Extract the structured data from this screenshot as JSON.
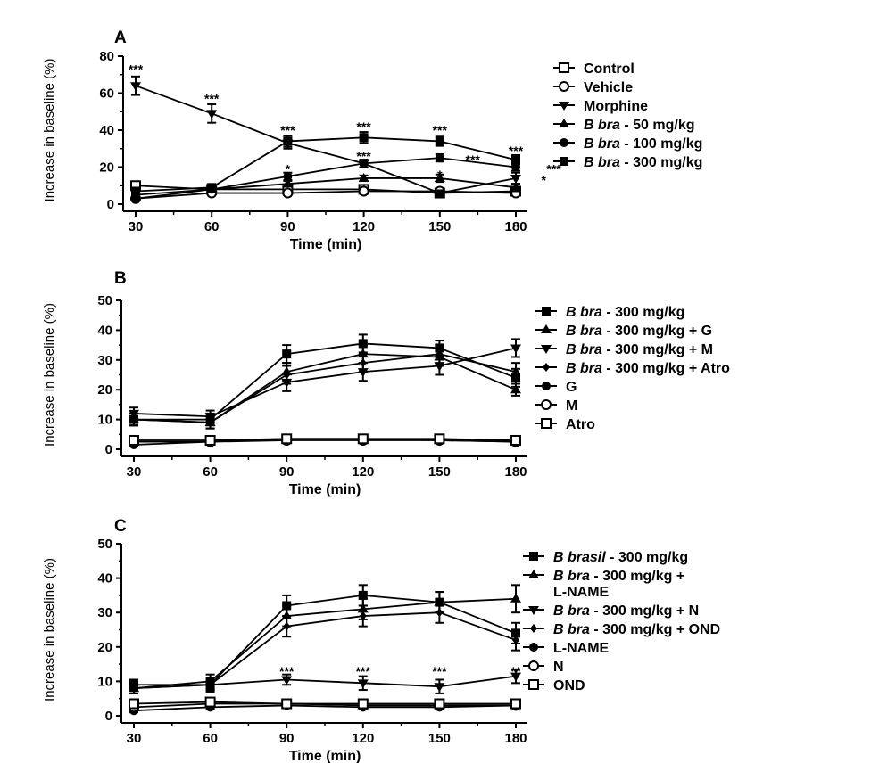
{
  "chart_data": [
    {
      "panel": "A",
      "type": "line",
      "xlabel": "Time (min)",
      "ylabel": "Increase in baseline (%)",
      "x": [
        30,
        60,
        90,
        120,
        150,
        180
      ],
      "xticks": [
        "30",
        "60",
        "90",
        "120",
        "150",
        "180"
      ],
      "ylim": [
        0,
        80
      ],
      "yticks": [
        "0",
        "20",
        "40",
        "60",
        "80"
      ],
      "legend_position": "right",
      "series": [
        {
          "name": "Control",
          "legend_parts": [
            "Control"
          ],
          "marker": "square-open",
          "values": [
            10,
            8,
            8,
            8,
            6,
            7
          ],
          "errors": [
            1.5,
            1,
            1.2,
            1.5,
            1,
            1
          ]
        },
        {
          "name": "Vehicle",
          "legend_parts": [
            "Vehicle"
          ],
          "marker": "circle-open",
          "values": [
            3,
            6,
            6,
            7,
            7,
            6
          ],
          "errors": [
            1,
            1,
            1,
            1,
            1,
            1
          ]
        },
        {
          "name": "Morphine",
          "legend_parts": [
            "Morphine"
          ],
          "marker": "triangle-down",
          "values": [
            64,
            49,
            33,
            22,
            6,
            14
          ],
          "errors": [
            5,
            5,
            3,
            2,
            1.5,
            3
          ]
        },
        {
          "name": "B bra - 50 mg/kg",
          "legend_parts": [
            "B bra",
            " - 50 mg/kg"
          ],
          "marker": "triangle-up",
          "values": [
            5,
            8,
            11,
            14,
            14,
            9
          ],
          "errors": [
            1,
            1,
            1.5,
            1.5,
            2,
            2
          ]
        },
        {
          "name": "B bra - 100 mg/kg",
          "legend_parts": [
            "B bra",
            " - 100 mg/kg"
          ],
          "marker": "circle",
          "values": [
            3,
            8,
            15,
            22,
            25,
            20
          ],
          "errors": [
            1,
            1,
            2,
            2,
            2,
            2
          ]
        },
        {
          "name": "B bra - 300 mg/kg",
          "legend_parts": [
            "B bra",
            " - 300 mg/kg"
          ],
          "marker": "square",
          "values": [
            7,
            9,
            34,
            36,
            34,
            24
          ],
          "errors": [
            1.5,
            1.5,
            3,
            3,
            2.5,
            2.5
          ]
        }
      ],
      "annotations": [
        {
          "text": "***",
          "x": 30,
          "y": 73
        },
        {
          "text": "***",
          "x": 60,
          "y": 57
        },
        {
          "text": "***",
          "x": 90,
          "y": 40
        },
        {
          "text": "*",
          "x": 90,
          "y": 19
        },
        {
          "text": "***",
          "x": 120,
          "y": 42
        },
        {
          "text": "***",
          "x": 120,
          "y": 26
        },
        {
          "text": "***",
          "x": 150,
          "y": 40
        },
        {
          "text": "*",
          "x": 150,
          "y": 16
        },
        {
          "text": "***",
          "x": 163,
          "y": 24
        },
        {
          "text": "***",
          "x": 180,
          "y": 29
        },
        {
          "text": "***",
          "x": 195,
          "y": 19
        },
        {
          "text": "*",
          "x": 191,
          "y": 13
        }
      ]
    },
    {
      "panel": "B",
      "type": "line",
      "xlabel": "Time (min)",
      "ylabel": "Increase in baseline (%)",
      "x": [
        30,
        60,
        90,
        120,
        150,
        180
      ],
      "xticks": [
        "30",
        "60",
        "90",
        "120",
        "150",
        "180"
      ],
      "ylim": [
        0,
        50
      ],
      "yticks": [
        "0",
        "10",
        "20",
        "30",
        "40",
        "50"
      ],
      "legend_position": "right",
      "series": [
        {
          "name": "B bra - 300 mg/kg",
          "legend_parts": [
            "B bra",
            " - 300 mg/kg"
          ],
          "marker": "square",
          "values": [
            10,
            10,
            32,
            35.5,
            34,
            24
          ],
          "errors": [
            2,
            2,
            3,
            3,
            2.5,
            3
          ]
        },
        {
          "name": "B bra - 300 mg/kg + G",
          "legend_parts": [
            "B bra",
            " - 300 mg/kg + G"
          ],
          "marker": "triangle-up",
          "values": [
            10,
            9,
            26,
            32,
            31,
            20
          ],
          "errors": [
            2,
            2,
            3,
            3,
            3,
            2
          ]
        },
        {
          "name": "B bra - 300 mg/kg + M",
          "legend_parts": [
            "B bra",
            " - 300 mg/kg + M"
          ],
          "marker": "triangle-down",
          "values": [
            12,
            11,
            22.5,
            26,
            28,
            34
          ],
          "errors": [
            2,
            2,
            3,
            3,
            3,
            3
          ]
        },
        {
          "name": "B bra - 300 mg/kg + Atro",
          "legend_parts": [
            "B bra",
            " - 300 mg/kg + Atro"
          ],
          "marker": "diamond",
          "values": [
            10,
            9,
            25,
            29,
            32,
            26
          ],
          "errors": [
            2,
            2,
            3,
            3,
            3,
            3
          ]
        },
        {
          "name": "G",
          "legend_parts": [
            "G"
          ],
          "marker": "circle",
          "values": [
            1.5,
            2.5,
            3.5,
            3.5,
            3,
            2.5
          ],
          "errors": [
            0.5,
            0.5,
            0.5,
            0.5,
            0.5,
            0.5
          ]
        },
        {
          "name": "M",
          "legend_parts": [
            "M"
          ],
          "marker": "circle-open",
          "values": [
            2.5,
            2.5,
            3,
            3,
            3,
            2.5
          ],
          "errors": [
            0.5,
            0.5,
            0.5,
            0.5,
            0.5,
            0.5
          ]
        },
        {
          "name": "Atro",
          "legend_parts": [
            "Atro"
          ],
          "marker": "square-open",
          "values": [
            3,
            3,
            3.5,
            3.5,
            3.5,
            3
          ],
          "errors": [
            0.5,
            0.5,
            0.5,
            0.5,
            0.5,
            0.5
          ]
        }
      ],
      "annotations": []
    },
    {
      "panel": "C",
      "type": "line",
      "xlabel": "Time (min)",
      "ylabel": "Increase in baseline (%)",
      "x": [
        30,
        60,
        90,
        120,
        150,
        180
      ],
      "xticks": [
        "30",
        "60",
        "90",
        "120",
        "150",
        "180"
      ],
      "ylim": [
        0,
        50
      ],
      "yticks": [
        "0",
        "10",
        "20",
        "30",
        "40",
        "50"
      ],
      "legend_position": "right",
      "series": [
        {
          "name": "B brasil - 300 mg/kg",
          "legend_parts": [
            "B brasil",
            " - 300 mg/kg"
          ],
          "marker": "square",
          "values": [
            9,
            9,
            32,
            35,
            33,
            24
          ],
          "errors": [
            1.5,
            2,
            3,
            3,
            3,
            3
          ]
        },
        {
          "name": "B bra - 300 mg/kg + L-NAME",
          "legend_parts": [
            "B bra",
            " - 300 mg/kg + ",
            "L-NAME"
          ],
          "marker": "triangle-up",
          "values": [
            8,
            10,
            29,
            31,
            33,
            34
          ],
          "errors": [
            1.5,
            2,
            3,
            3,
            3,
            4
          ]
        },
        {
          "name": "B bra - 300 mg/kg + N",
          "legend_parts": [
            "B bra",
            " - 300 mg/kg + N"
          ],
          "marker": "triangle-down",
          "values": [
            8,
            9,
            10.5,
            9.5,
            8.5,
            11.5
          ],
          "errors": [
            1.5,
            1.5,
            1.5,
            2,
            2,
            2
          ]
        },
        {
          "name": "B bra - 300 mg/kg + OND",
          "legend_parts": [
            "B bra",
            " - 300 mg/kg + OND"
          ],
          "marker": "diamond",
          "values": [
            8,
            9,
            26,
            29,
            30,
            22
          ],
          "errors": [
            1.5,
            1.5,
            3,
            3,
            3,
            3
          ]
        },
        {
          "name": "L-NAME",
          "legend_parts": [
            "L-NAME"
          ],
          "marker": "circle",
          "values": [
            1.5,
            2.5,
            3,
            2.5,
            2.5,
            3
          ],
          "errors": [
            0.5,
            0.5,
            0.5,
            0.5,
            0.5,
            0.5
          ]
        },
        {
          "name": "N",
          "legend_parts": [
            "N"
          ],
          "marker": "circle-open",
          "values": [
            2.5,
            3.5,
            3.5,
            3,
            3,
            3
          ],
          "errors": [
            0.5,
            0.5,
            0.5,
            0.5,
            0.5,
            0.5
          ]
        },
        {
          "name": "OND",
          "legend_parts": [
            "OND"
          ],
          "marker": "square-open",
          "values": [
            3.5,
            4,
            3.5,
            3.5,
            3.5,
            3.5
          ],
          "errors": [
            0.5,
            0.5,
            0.5,
            0.5,
            0.5,
            0.5
          ]
        }
      ],
      "annotations": [
        {
          "text": "***",
          "x": 90,
          "y": 13
        },
        {
          "text": "***",
          "x": 120,
          "y": 13
        },
        {
          "text": "***",
          "x": 150,
          "y": 13
        },
        {
          "text": "**",
          "x": 180,
          "y": 13
        }
      ]
    }
  ]
}
